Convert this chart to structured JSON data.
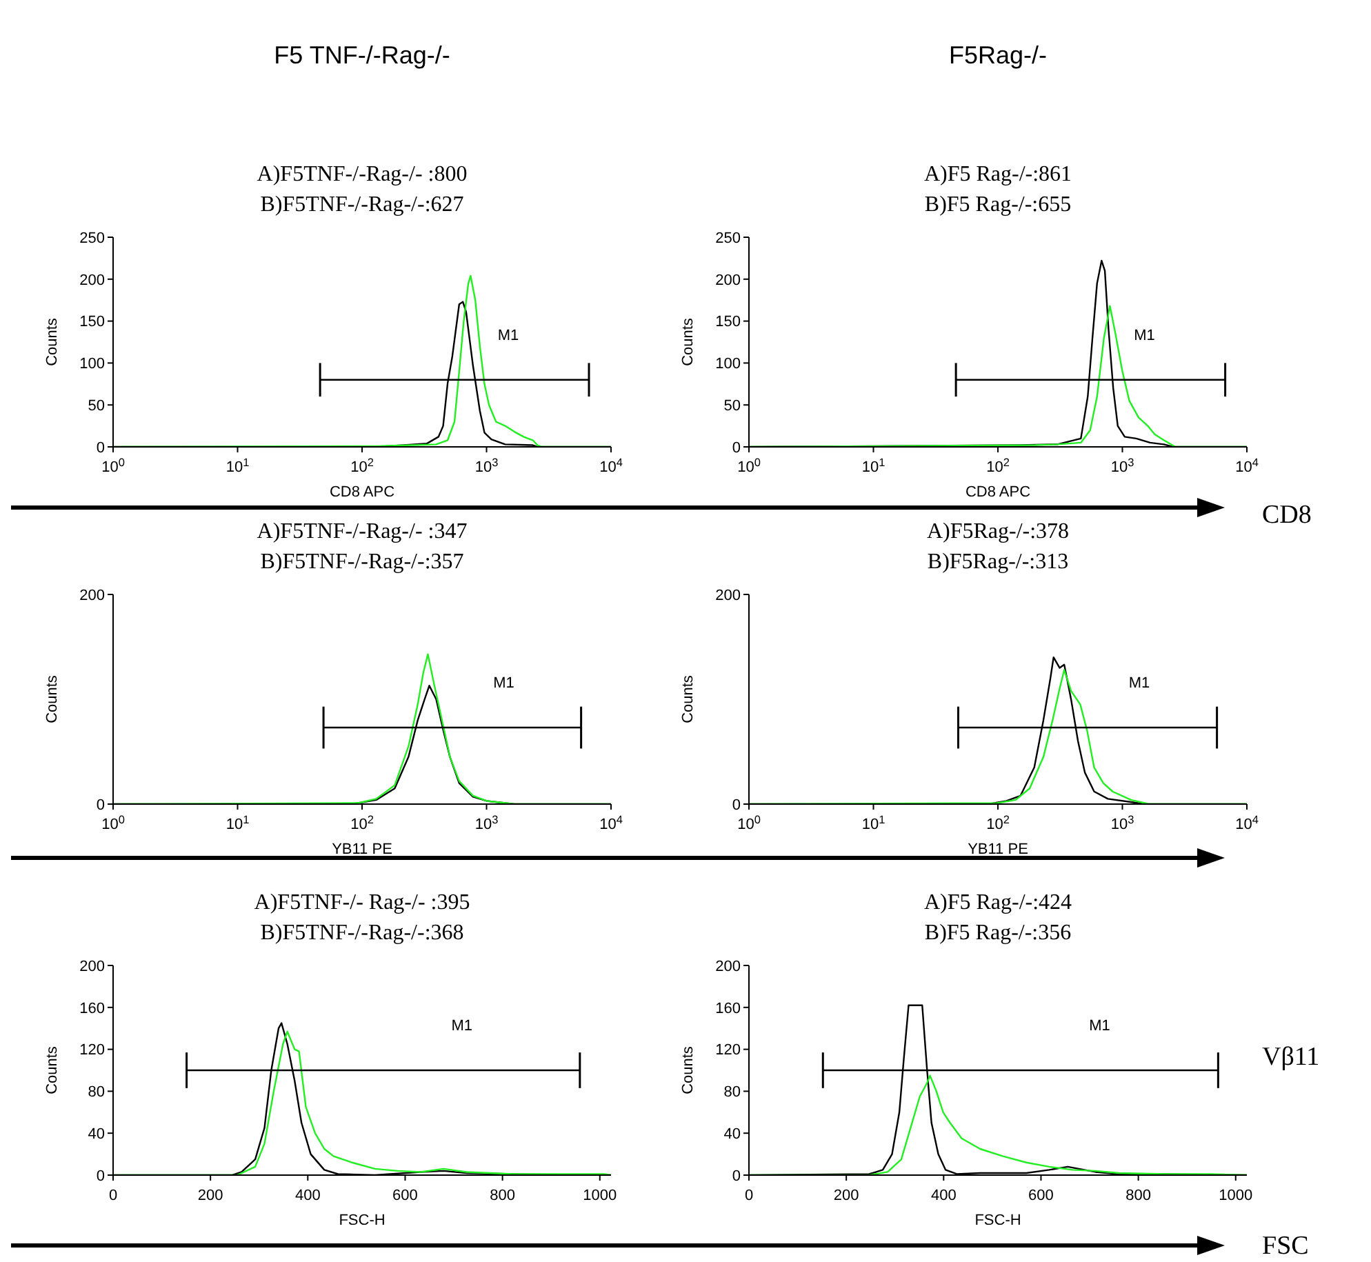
{
  "chart_data": [
    {
      "type": "line",
      "title": "A)F5TNF-/-Rag-/- :800",
      "subtitle": "B)F5TNF-/-Rag-/-:627",
      "xlabel": "CD8 APC",
      "ylabel": "Counts",
      "log": "x",
      "xlim": [
        1,
        10000
      ],
      "xticks": [
        {
          "value": 1,
          "label": "10$^{0}$"
        },
        {
          "value": 10,
          "label": "10$^{1}$"
        },
        {
          "value": 100,
          "label": "10$^{2}$"
        },
        {
          "value": 1000,
          "label": "10$^{3}$"
        },
        {
          "value": 10000,
          "label": "10$^{4}$"
        }
      ],
      "ylim": [
        0,
        250
      ],
      "yticks": [
        0,
        50,
        100,
        150,
        200,
        250
      ],
      "annotations": [
        "F5 TNF-/-Rag-/-"
      ],
      "series": [
        {
          "color": "#000000",
          "x": [
            1,
            130,
            217,
            332,
            411,
            448,
            487,
            531,
            603,
            645,
            685,
            778,
            884,
            962,
            1093,
            1412,
            2354,
            2561,
            10000
          ],
          "values": [
            0,
            0,
            2,
            4,
            12,
            25,
            76,
            108,
            170,
            173,
            161,
            97,
            43,
            17,
            9,
            3,
            2,
            0,
            0
          ]
        },
        {
          "color": "#22ee22",
          "x": [
            1,
            142,
            257,
            394,
            487,
            553,
            603,
            656,
            714,
            745,
            812,
            884,
            962,
            1047,
            1191,
            1412,
            1675,
            1985,
            2354,
            2561,
            2786,
            10000
          ],
          "values": [
            0,
            1,
            2,
            3,
            8,
            30,
            90,
            150,
            195,
            204,
            175,
            120,
            75,
            50,
            30,
            25,
            18,
            12,
            8,
            2,
            0,
            0
          ]
        },
        {
          "name": "M1",
          "color": "#000000",
          "x": [
            46,
            6650
          ],
          "values": [
            80,
            80
          ],
          "errors": [
            20,
            20
          ]
        }
      ]
    },
    {
      "type": "line",
      "title": "A)F5 Rag-/-:861",
      "subtitle": "B)F5 Rag-/-:655",
      "xlabel": "CD8 APC",
      "ylabel": "Counts",
      "log": "x",
      "xlim": [
        1,
        10000
      ],
      "xticks": [
        {
          "value": 1,
          "label": "10$^{0}$"
        },
        {
          "value": 10,
          "label": "10$^{1}$"
        },
        {
          "value": 100,
          "label": "10$^{2}$"
        },
        {
          "value": 1000,
          "label": "10$^{3}$"
        },
        {
          "value": 10000,
          "label": "10$^{4}$"
        }
      ],
      "ylim": [
        0,
        250
      ],
      "yticks": [
        0,
        50,
        100,
        150,
        200,
        250
      ],
      "annotations": [
        "F5Rag-/-",
        "CD8"
      ],
      "series": [
        {
          "color": "#000000",
          "x": [
            1,
            150,
            300,
            464,
            527,
            575,
            626,
            681,
            723,
            774,
            844,
            918,
            1044,
            1292,
            1668,
            2154,
            2555,
            10000
          ],
          "values": [
            0,
            2,
            3,
            10,
            60,
            130,
            195,
            222,
            210,
            140,
            70,
            25,
            12,
            10,
            5,
            3,
            0,
            0
          ]
        },
        {
          "color": "#22ee22",
          "x": [
            1,
            200,
            300,
            464,
            551,
            626,
            711,
            794,
            879,
            1000,
            1137,
            1349,
            1600,
            1816,
            2154,
            2666,
            10000
          ],
          "values": [
            0,
            2,
            3,
            5,
            20,
            60,
            130,
            168,
            135,
            90,
            55,
            35,
            25,
            15,
            8,
            0,
            0
          ]
        },
        {
          "name": "M1",
          "color": "#000000",
          "x": [
            46,
            6700
          ],
          "values": [
            80,
            80
          ],
          "errors": [
            20,
            20
          ]
        }
      ]
    },
    {
      "type": "line",
      "title": "A)F5TNF-/-Rag-/- :347",
      "subtitle": "B)F5TNF-/-Rag-/-:357",
      "xlabel": "YB11 PE",
      "ylabel": "Counts",
      "log": "x",
      "xlim": [
        1,
        10000
      ],
      "xticks": [
        {
          "value": 1,
          "label": "10$^{0}$"
        },
        {
          "value": 10,
          "label": "10$^{1}$"
        },
        {
          "value": 100,
          "label": "10$^{2}$"
        },
        {
          "value": 1000,
          "label": "10$^{3}$"
        },
        {
          "value": 10000,
          "label": "10$^{4}$"
        }
      ],
      "ylim": [
        0,
        200
      ],
      "yticks": [
        0,
        200
      ],
      "series": [
        {
          "color": "#000000",
          "x": [
            1,
            80,
            93,
            130,
            183,
            236,
            280,
            318,
            347,
            394,
            448,
            508,
            603,
            778,
            1005,
            1412,
            1675,
            10000
          ],
          "values": [
            0,
            0,
            1,
            4,
            15,
            45,
            80,
            100,
            113,
            100,
            71,
            45,
            20,
            7,
            3,
            1,
            0,
            0
          ]
        },
        {
          "color": "#22ee22",
          "x": [
            1,
            93,
            130,
            183,
            236,
            280,
            310,
            338,
            378,
            448,
            508,
            603,
            778,
            1005,
            1412,
            1675,
            10000
          ],
          "values": [
            0,
            1,
            5,
            18,
            55,
            95,
            125,
            143,
            115,
            75,
            45,
            22,
            8,
            3,
            1,
            0,
            0
          ]
        },
        {
          "name": "M1",
          "color": "#000000",
          "x": [
            49,
            5750
          ],
          "values": [
            73,
            73
          ],
          "errors": [
            20,
            20
          ]
        }
      ]
    },
    {
      "type": "line",
      "title": "A)F5Rag-/-:378",
      "subtitle": "B)F5Rag-/-:313",
      "xlabel": "YB11 PE",
      "ylabel": "Counts",
      "log": "x",
      "xlim": [
        1,
        10000
      ],
      "xticks": [
        {
          "value": 1,
          "label": "10$^{0}$"
        },
        {
          "value": 10,
          "label": "10$^{1}$"
        },
        {
          "value": 100,
          "label": "10$^{2}$"
        },
        {
          "value": 1000,
          "label": "10$^{3}$"
        },
        {
          "value": 10000,
          "label": "10$^{4}$"
        }
      ],
      "ylim": [
        0,
        200
      ],
      "yticks": [
        0,
        200
      ],
      "annotations": [
        "Vβ11"
      ],
      "series": [
        {
          "color": "#000000",
          "x": [
            1,
            84,
            117,
            152,
            196,
            232,
            264,
            280,
            313,
            341,
            387,
            440,
            500,
            593,
            765,
            1170,
            1510,
            10000
          ],
          "values": [
            0,
            0,
            3,
            8,
            35,
            80,
            120,
            140,
            130,
            133,
            100,
            60,
            30,
            12,
            5,
            2,
            0,
            0
          ]
        },
        {
          "color": "#22ee22",
          "x": [
            1,
            99,
            139,
            180,
            232,
            275,
            313,
            341,
            387,
            459,
            521,
            593,
            703,
            834,
            1170,
            1510,
            1644,
            10000
          ],
          "values": [
            0,
            1,
            4,
            15,
            45,
            80,
            110,
            128,
            108,
            95,
            70,
            35,
            20,
            12,
            4,
            1,
            0,
            0
          ]
        },
        {
          "name": "M1",
          "color": "#000000",
          "x": [
            48,
            5750
          ],
          "values": [
            73,
            73
          ],
          "errors": [
            20,
            20
          ]
        }
      ]
    },
    {
      "type": "line",
      "title": "A)F5TNF-/- Rag-/- :395",
      "subtitle": "B)F5TNF-/-Rag-/-:368",
      "xlabel": "FSC-H",
      "ylabel": "Counts",
      "xlim": [
        0,
        1023
      ],
      "xticks": [
        0,
        200,
        400,
        600,
        800,
        1000
      ],
      "ylim": [
        0,
        200
      ],
      "yticks": [
        0,
        40,
        80,
        120,
        160,
        200
      ],
      "series": [
        {
          "color": "#000000",
          "x": [
            0,
            245,
            264,
            292,
            311,
            325,
            340,
            346,
            358,
            373,
            387,
            406,
            434,
            462,
            538,
            632,
            679,
            726,
            821,
            1009,
            1023
          ],
          "values": [
            0,
            0,
            3,
            15,
            45,
            100,
            140,
            145,
            125,
            90,
            50,
            20,
            5,
            1,
            0,
            3,
            4,
            2,
            1,
            0,
            0
          ]
        },
        {
          "color": "#22ee22",
          "x": [
            0,
            255,
            292,
            311,
            330,
            349,
            358,
            373,
            382,
            396,
            415,
            434,
            453,
            491,
            538,
            585,
            632,
            679,
            726,
            821,
            915,
            1009,
            1023
          ],
          "values": [
            0,
            0,
            8,
            30,
            80,
            125,
            137,
            120,
            118,
            65,
            40,
            25,
            18,
            12,
            6,
            4,
            3,
            6,
            3,
            1,
            1,
            1,
            0
          ]
        },
        {
          "name": "M1",
          "color": "#000000",
          "x": [
            151,
            959
          ],
          "values": [
            100,
            100
          ],
          "errors": [
            17,
            17
          ]
        }
      ]
    },
    {
      "type": "line",
      "title": "A)F5 Rag-/-:424",
      "subtitle": "B)F5 Rag-/-:356",
      "xlabel": "FSC-H",
      "ylabel": "Counts",
      "xlim": [
        0,
        1023
      ],
      "xticks": [
        0,
        200,
        400,
        600,
        800,
        1000
      ],
      "ylim": [
        0,
        200
      ],
      "yticks": [
        0,
        40,
        80,
        120,
        160,
        200
      ],
      "annotations": [
        "FSC"
      ],
      "series": [
        {
          "color": "#000000",
          "x": [
            0,
            247,
            275,
            294,
            309,
            318,
            328,
            356,
            366,
            375,
            389,
            404,
            427,
            475,
            570,
            617,
            655,
            712,
            760,
            855,
            1023
          ],
          "values": [
            0,
            1,
            5,
            20,
            60,
            110,
            162,
            162,
            100,
            50,
            20,
            5,
            1,
            2,
            2,
            5,
            8,
            3,
            1,
            1,
            0
          ]
        },
        {
          "color": "#22ee22",
          "x": [
            0,
            247,
            285,
            313,
            332,
            351,
            366,
            372,
            385,
            399,
            413,
            437,
            475,
            522,
            570,
            617,
            665,
            712,
            760,
            855,
            950,
            1023
          ],
          "values": [
            0,
            0,
            3,
            15,
            45,
            75,
            88,
            95,
            80,
            60,
            50,
            35,
            25,
            18,
            12,
            8,
            5,
            4,
            2,
            1,
            1,
            0
          ]
        },
        {
          "name": "M1",
          "color": "#000000",
          "x": [
            152,
            964
          ],
          "values": [
            100,
            100
          ],
          "errors": [
            17,
            17
          ]
        }
      ]
    }
  ]
}
